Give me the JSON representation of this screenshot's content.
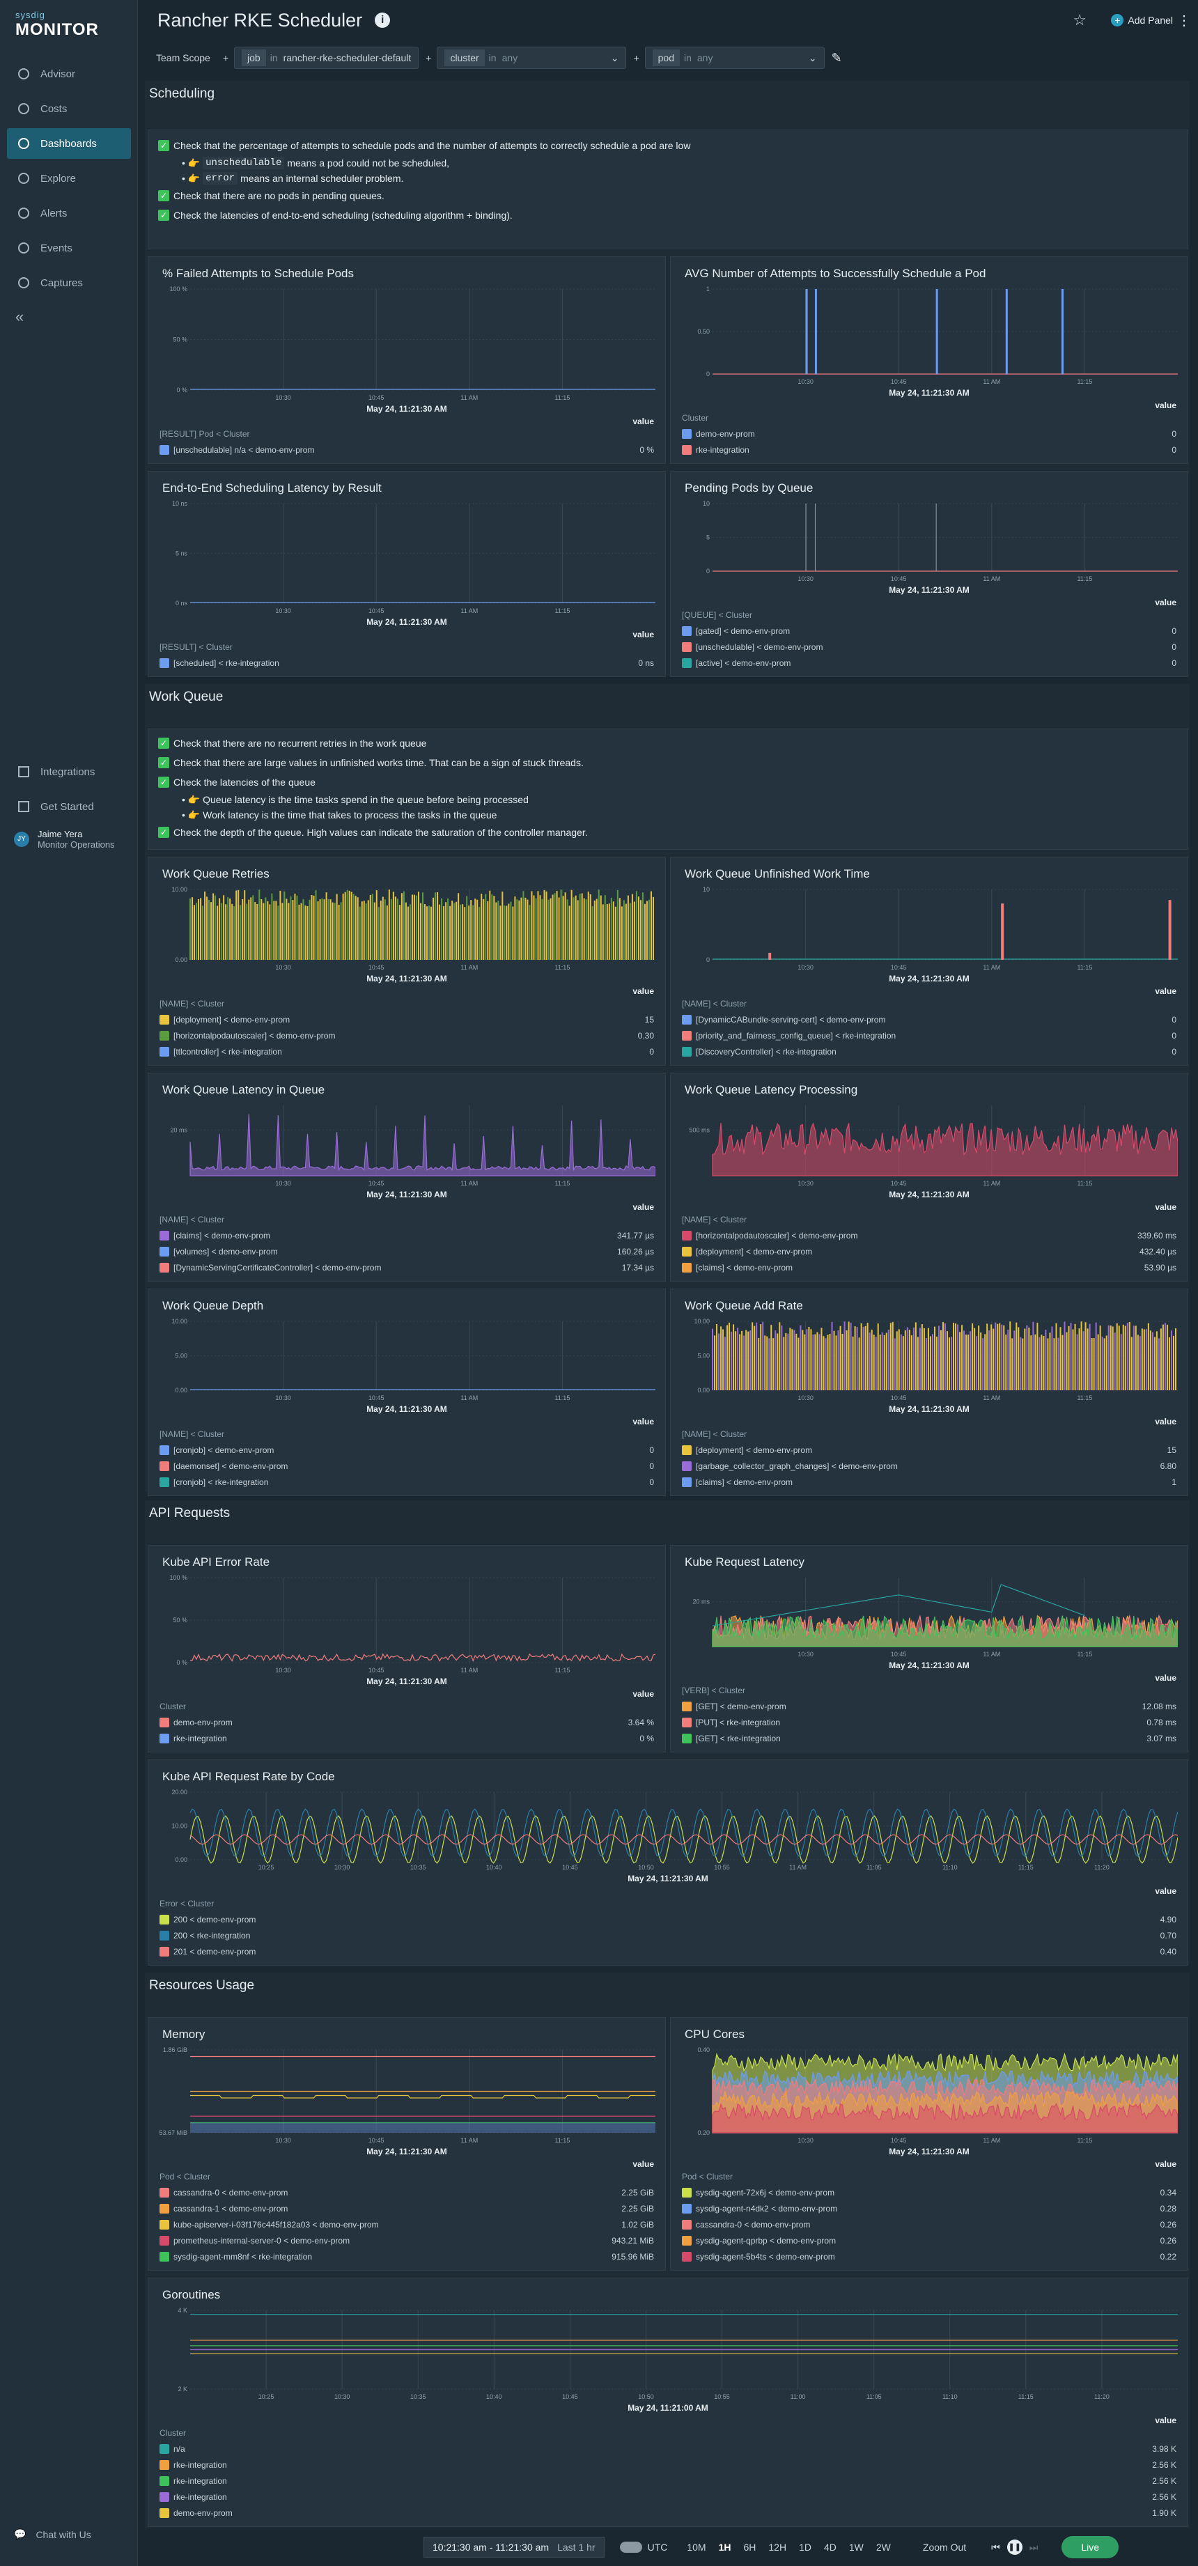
{
  "brand": {
    "l1": "sysdig",
    "l2": "MONITOR"
  },
  "nav": [
    {
      "label": "Advisor",
      "icon": "advisor-icon"
    },
    {
      "label": "Costs",
      "icon": "costs-icon"
    },
    {
      "label": "Dashboards",
      "icon": "dashboards-icon"
    },
    {
      "label": "Explore",
      "icon": "explore-icon"
    },
    {
      "label": "Alerts",
      "icon": "alerts-icon"
    },
    {
      "label": "Events",
      "icon": "events-icon"
    },
    {
      "label": "Captures",
      "icon": "captures-icon"
    }
  ],
  "nav_bottom": [
    {
      "label": "Integrations"
    },
    {
      "label": "Get Started"
    }
  ],
  "user": {
    "initials": "JY",
    "name": "Jaime Yera",
    "org": "Monitor Operations"
  },
  "chat": "Chat with Us",
  "title": "Rancher RKE Scheduler",
  "add_panel": "Add Panel",
  "filters": {
    "scope": "Team Scope",
    "job": {
      "k": "job",
      "op": "in",
      "v": "rancher-rke-scheduler-default"
    },
    "cluster": {
      "k": "cluster",
      "op": "in",
      "v": "any"
    },
    "pod": {
      "k": "pod",
      "op": "in",
      "v": "any"
    }
  },
  "sections": {
    "scheduling": "Scheduling",
    "workqueue": "Work Queue",
    "api": "API Requests",
    "resources": "Resources Usage"
  },
  "sched_text": {
    "c1": "Check that the percentage of attempts to schedule pods and the number of attempts to correctly schedule a pod are low",
    "b1code": "unschedulable",
    "b1": "means a pod could not be scheduled,",
    "b2code": "error",
    "b2": "means an internal scheduler problem.",
    "c2": "Check that there are no pods in pending queues.",
    "c3": "Check the latencies of end-to-end scheduling (scheduling algorithm + binding)."
  },
  "wq_text": {
    "c1": "Check that there are no recurrent retries in the work queue",
    "c2": "Check that there are large values in unfinished works time. That can be a sign of stuck threads.",
    "c3": "Check the latencies of the queue",
    "b1": "Queue latency is the time tasks spend in the queue before being processed",
    "b2": "Work latency is the time that takes to process the tasks in the queue",
    "c4": "Check the depth of the queue. High values can indicate the saturation of the controller manager."
  },
  "common": {
    "value": "value",
    "time": "May 24, 11:21:30 AM",
    "time2": "May 24, 11:21:00 AM"
  },
  "panels": {
    "p1": {
      "title": "% Failed Attempts to Schedule Pods",
      "yt": [
        "100 %",
        "50 %",
        "0 %"
      ],
      "xt": [
        "10:30",
        "10:45",
        "11 AM",
        "11:15"
      ],
      "lh": "[RESULT] Pod < Cluster",
      "rows": [
        {
          "l": "[unschedulable] n/a < demo-env-prom",
          "v": "0 %",
          "c": "#6c9cf0"
        }
      ]
    },
    "p2": {
      "title": "AVG Number of Attempts to Successfully Schedule a Pod",
      "yt": [
        "1",
        "0.50",
        "0"
      ],
      "xt": [
        "10:30",
        "10:45",
        "11 AM",
        "11:15"
      ],
      "lh": "Cluster",
      "rows": [
        {
          "l": "demo-env-prom",
          "v": "0",
          "c": "#6c9cf0"
        },
        {
          "l": "rke-integration",
          "v": "0",
          "c": "#f07c7c"
        }
      ]
    },
    "p3": {
      "title": "End-to-End Scheduling Latency by Result",
      "yt": [
        "10 ns",
        "5 ns",
        "0 ns"
      ],
      "xt": [
        "10:30",
        "10:45",
        "11 AM",
        "11:15"
      ],
      "lh": "[RESULT] < Cluster",
      "rows": [
        {
          "l": "[scheduled] < rke-integration",
          "v": "0 ns",
          "c": "#6c9cf0"
        }
      ]
    },
    "p4": {
      "title": "Pending Pods by Queue",
      "yt": [
        "10",
        "5",
        "0"
      ],
      "xt": [
        "10:30",
        "10:45",
        "11 AM",
        "11:15"
      ],
      "lh": "[QUEUE] < Cluster",
      "rows": [
        {
          "l": "[gated] < demo-env-prom",
          "v": "0",
          "c": "#6c9cf0"
        },
        {
          "l": "[unschedulable] < demo-env-prom",
          "v": "0",
          "c": "#f07c7c"
        },
        {
          "l": "[active] < demo-env-prom",
          "v": "0",
          "c": "#2aa5a0"
        }
      ]
    },
    "p5": {
      "title": "Work Queue Retries",
      "yt": [
        "10.00",
        "0.00"
      ],
      "xt": [
        "10:30",
        "10:45",
        "11 AM",
        "11:15"
      ],
      "lh": "[NAME] < Cluster",
      "rows": [
        {
          "l": "[deployment] < demo-env-prom",
          "v": "15",
          "c": "#e8c33c"
        },
        {
          "l": "[horizontalpodautoscaler] < demo-env-prom",
          "v": "0.30",
          "c": "#5a9c3e"
        },
        {
          "l": "[ttlcontroller] < rke-integration",
          "v": "0",
          "c": "#6c9cf0"
        }
      ]
    },
    "p6": {
      "title": "Work Queue Unfinished Work Time",
      "yt": [
        "10",
        "0"
      ],
      "xt": [
        "10:30",
        "10:45",
        "11 AM",
        "11:15"
      ],
      "lh": "[NAME] < Cluster",
      "rows": [
        {
          "l": "[DynamicCABundle-serving-cert] < demo-env-prom",
          "v": "0",
          "c": "#6c9cf0"
        },
        {
          "l": "[priority_and_fairness_config_queue] < rke-integration",
          "v": "0",
          "c": "#f07c7c"
        },
        {
          "l": "[DiscoveryController] < rke-integration",
          "v": "0",
          "c": "#2aa5a0"
        }
      ]
    },
    "p7": {
      "title": "Work Queue Latency in Queue",
      "yt": [
        "20 ms"
      ],
      "xt": [
        "10:30",
        "10:45",
        "11 AM",
        "11:15"
      ],
      "lh": "[NAME] < Cluster",
      "rows": [
        {
          "l": "[claims] < demo-env-prom",
          "v": "341.77 µs",
          "c": "#9a6cd8"
        },
        {
          "l": "[volumes] < demo-env-prom",
          "v": "160.26 µs",
          "c": "#6c9cf0"
        },
        {
          "l": "[DynamicServingCertificateController] < demo-env-prom",
          "v": "17.34 µs",
          "c": "#f07c7c"
        }
      ]
    },
    "p8": {
      "title": "Work Queue Latency Processing",
      "yt": [
        "500 ms"
      ],
      "xt": [
        "10:30",
        "10:45",
        "11 AM",
        "11:15"
      ],
      "lh": "[NAME] < Cluster",
      "rows": [
        {
          "l": "[horizontalpodautoscaler] < demo-env-prom",
          "v": "339.60 ms",
          "c": "#d84a6a"
        },
        {
          "l": "[deployment] < demo-env-prom",
          "v": "432.40 µs",
          "c": "#e8c33c"
        },
        {
          "l": "[claims] < demo-env-prom",
          "v": "53.90 µs",
          "c": "#f0a040"
        }
      ]
    },
    "p9": {
      "title": "Work Queue Depth",
      "yt": [
        "10.00",
        "5.00",
        "0.00"
      ],
      "xt": [
        "10:30",
        "10:45",
        "11 AM",
        "11:15"
      ],
      "lh": "[NAME] < Cluster",
      "rows": [
        {
          "l": "[cronjob] < demo-env-prom",
          "v": "0",
          "c": "#6c9cf0"
        },
        {
          "l": "[daemonset] < demo-env-prom",
          "v": "0",
          "c": "#f07c7c"
        },
        {
          "l": "[cronjob] < rke-integration",
          "v": "0",
          "c": "#2aa5a0"
        }
      ]
    },
    "p10": {
      "title": "Work Queue Add Rate",
      "yt": [
        "10.00",
        "5.00",
        "0.00"
      ],
      "xt": [
        "10:30",
        "10:45",
        "11 AM",
        "11:15"
      ],
      "lh": "[NAME] < Cluster",
      "rows": [
        {
          "l": "[deployment] < demo-env-prom",
          "v": "15",
          "c": "#e8c33c"
        },
        {
          "l": "[garbage_collector_graph_changes] < demo-env-prom",
          "v": "6.80",
          "c": "#9a6cd8"
        },
        {
          "l": "[claims] < demo-env-prom",
          "v": "1",
          "c": "#6c9cf0"
        }
      ]
    },
    "p11": {
      "title": "Kube API Error Rate",
      "yt": [
        "100 %",
        "50 %",
        "0 %"
      ],
      "xt": [
        "10:30",
        "10:45",
        "11 AM",
        "11:15"
      ],
      "lh": "Cluster",
      "rows": [
        {
          "l": "demo-env-prom",
          "v": "3.64 %",
          "c": "#f07c7c"
        },
        {
          "l": "rke-integration",
          "v": "0 %",
          "c": "#6c9cf0"
        }
      ]
    },
    "p12": {
      "title": "Kube Request Latency",
      "yt": [
        "20 ms"
      ],
      "xt": [
        "10:30",
        "10:45",
        "11 AM",
        "11:15"
      ],
      "lh": "[VERB] < Cluster",
      "rows": [
        {
          "l": "[GET] < demo-env-prom",
          "v": "12.08 ms",
          "c": "#f0a040"
        },
        {
          "l": "[PUT] < rke-integration",
          "v": "0.78 ms",
          "c": "#f07c7c"
        },
        {
          "l": "[GET] < rke-integration",
          "v": "3.07 ms",
          "c": "#3ec25b"
        }
      ]
    },
    "p13": {
      "title": "Kube API Request Rate by Code",
      "yt": [
        "20.00",
        "10.00",
        "0.00"
      ],
      "xt": [
        "10:25",
        "10:30",
        "10:35",
        "10:40",
        "10:45",
        "10:50",
        "10:55",
        "11 AM",
        "11:05",
        "11:10",
        "11:15",
        "11:20"
      ],
      "lh": "Error < Cluster",
      "rows": [
        {
          "l": "200 < demo-env-prom",
          "v": "4.90",
          "c": "#c8e04a"
        },
        {
          "l": "200 < rke-integration",
          "v": "0.70",
          "c": "#2a7fa8"
        },
        {
          "l": "201 < demo-env-prom",
          "v": "0.40",
          "c": "#f07c7c"
        }
      ]
    },
    "p14": {
      "title": "Memory",
      "yt": [
        "1.86 GiB",
        "953.67 MiB"
      ],
      "xt": [
        "10:30",
        "10:45",
        "11 AM",
        "11:15"
      ],
      "lh": "Pod < Cluster",
      "rows": [
        {
          "l": "cassandra-0 < demo-env-prom",
          "v": "2.25 GiB",
          "c": "#f07c7c"
        },
        {
          "l": "cassandra-1 < demo-env-prom",
          "v": "2.25 GiB",
          "c": "#f0a040"
        },
        {
          "l": "kube-apiserver-i-03f176c445f182a03 < demo-env-prom",
          "v": "1.02 GiB",
          "c": "#e8c33c"
        },
        {
          "l": "prometheus-internal-server-0 < demo-env-prom",
          "v": "943.21 MiB",
          "c": "#d84a6a"
        },
        {
          "l": "sysdig-agent-mm8nf < rke-integration",
          "v": "915.96 MiB",
          "c": "#3ec25b"
        }
      ]
    },
    "p15": {
      "title": "CPU Cores",
      "yt": [
        "0.40",
        "0.20"
      ],
      "xt": [
        "10:30",
        "10:45",
        "11 AM",
        "11:15"
      ],
      "lh": "Pod < Cluster",
      "rows": [
        {
          "l": "sysdig-agent-72x6j < demo-env-prom",
          "v": "0.34",
          "c": "#c8e04a"
        },
        {
          "l": "sysdig-agent-n4dk2 < demo-env-prom",
          "v": "0.28",
          "c": "#6c9cf0"
        },
        {
          "l": "cassandra-0 < demo-env-prom",
          "v": "0.26",
          "c": "#f07c7c"
        },
        {
          "l": "sysdig-agent-qprbp < demo-env-prom",
          "v": "0.26",
          "c": "#f0a040"
        },
        {
          "l": "sysdig-agent-5b4ts < demo-env-prom",
          "v": "0.22",
          "c": "#d84a6a"
        }
      ]
    },
    "p16": {
      "title": "Goroutines",
      "yt": [
        "4 K",
        "2 K"
      ],
      "xt": [
        "10:25",
        "10:30",
        "10:35",
        "10:40",
        "10:45",
        "10:50",
        "10:55",
        "11:00",
        "11:05",
        "11:10",
        "11:15",
        "11:20"
      ],
      "lh": "Cluster",
      "rows": [
        {
          "l": "n/a",
          "v": "3.98 K",
          "c": "#2aa5a0"
        },
        {
          "l": "rke-integration",
          "v": "2.56 K",
          "c": "#f0a040"
        },
        {
          "l": "rke-integration",
          "v": "2.56 K",
          "c": "#3ec25b"
        },
        {
          "l": "rke-integration",
          "v": "2.56 K",
          "c": "#9a6cd8"
        },
        {
          "l": "demo-env-prom",
          "v": "1.90 K",
          "c": "#e8c33c"
        }
      ]
    }
  },
  "bottom": {
    "range": "10:21:30 am - 11:21:30 am",
    "last": "Last 1 hr",
    "utc": "UTC",
    "ranges": [
      "10M",
      "1H",
      "6H",
      "12H",
      "1D",
      "4D",
      "1W",
      "2W"
    ],
    "zoom": "Zoom Out",
    "live": "Live"
  }
}
